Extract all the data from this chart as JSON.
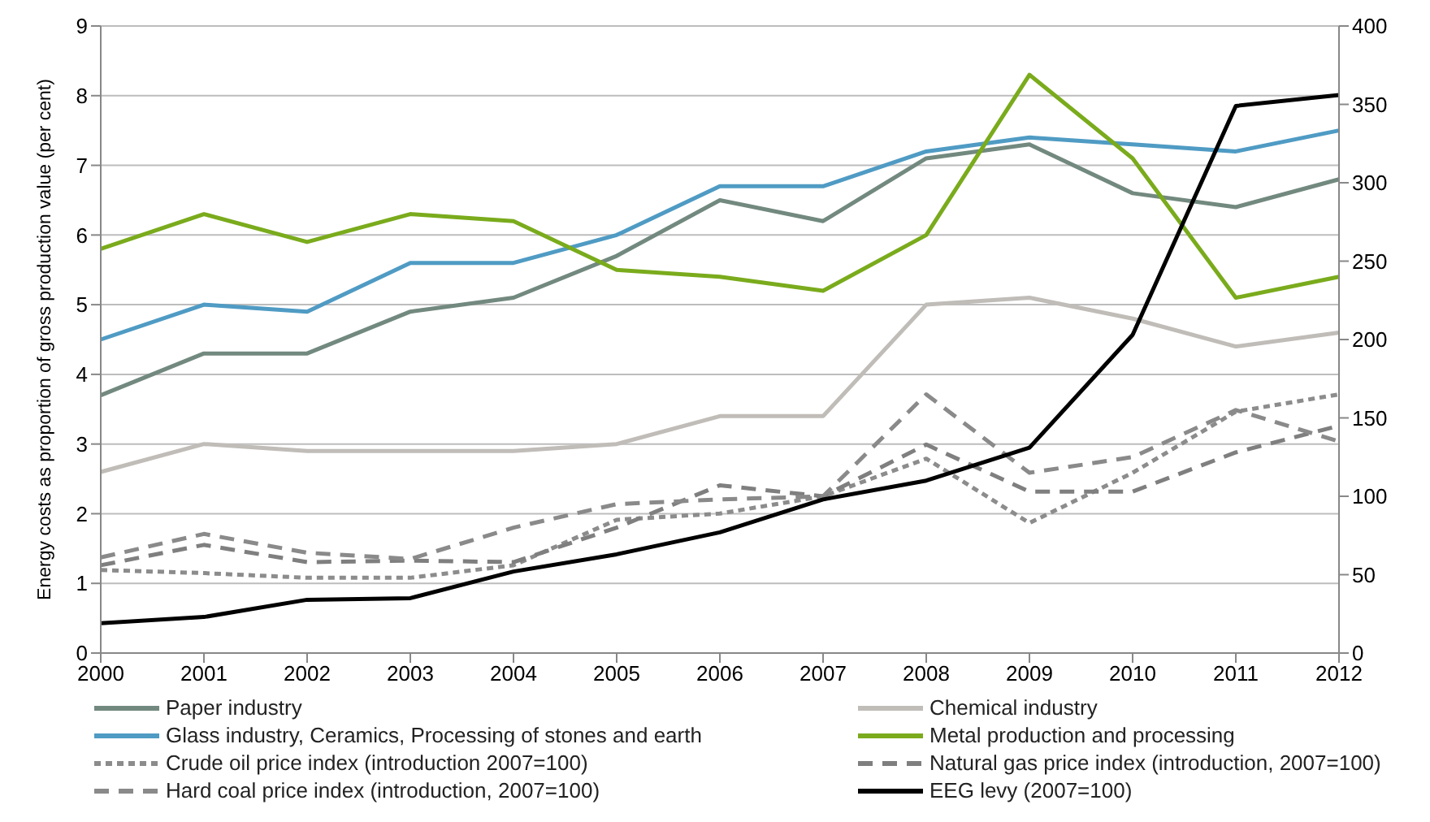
{
  "chart_data": {
    "type": "line",
    "ylabel": "Energy costs as proportion of gross production value (per cent)",
    "categories": [
      "2000",
      "2001",
      "2002",
      "2003",
      "2004",
      "2005",
      "2006",
      "2007",
      "2008",
      "2009",
      "2010",
      "2011",
      "2012"
    ],
    "ylim": [
      0,
      9
    ],
    "yticks": [
      0,
      1,
      2,
      3,
      4,
      5,
      6,
      7,
      8,
      9
    ],
    "y2lim": [
      0,
      400
    ],
    "y2ticks": [
      0,
      50,
      100,
      150,
      200,
      250,
      300,
      350,
      400
    ],
    "grid": "y",
    "legend": "bottom",
    "marker": "none",
    "series": [
      {
        "name": "Paper industry",
        "color": "#72897f",
        "line_style": "solid",
        "values": [
          3.7,
          4.3,
          4.3,
          4.9,
          5.1,
          5.7,
          6.5,
          6.2,
          7.1,
          7.3,
          6.6,
          6.4,
          6.8
        ]
      },
      {
        "name": "Chemical industry",
        "color": "#c0bcb8",
        "line_style": "solid",
        "values": [
          2.6,
          3.0,
          2.9,
          2.9,
          2.9,
          3.0,
          3.4,
          3.4,
          5.0,
          5.1,
          4.8,
          4.4,
          4.6
        ]
      },
      {
        "name": "Glass industry, Ceramics, Processing of stones and earth",
        "color": "#4f9bc4",
        "line_style": "solid",
        "values": [
          4.5,
          5.0,
          4.9,
          5.6,
          5.6,
          6.0,
          6.7,
          6.7,
          7.2,
          7.4,
          7.3,
          7.2,
          7.5
        ]
      },
      {
        "name": "Metal production and processing",
        "color": "#7aab1c",
        "line_style": "solid",
        "values": [
          5.8,
          6.3,
          5.9,
          6.3,
          6.2,
          5.5,
          5.4,
          5.2,
          6.0,
          8.3,
          7.1,
          5.1,
          5.4
        ]
      },
      {
        "name": "Crude oil price index (introduction 2007=100)",
        "color": "#8c8c8c",
        "line_style": "dotted",
        "axis": "y2",
        "values": [
          53,
          51,
          48,
          48,
          56,
          85,
          89,
          100,
          124,
          83,
          115,
          154,
          165
        ]
      },
      {
        "name": "Natural gas price index (introduction, 2007=100)",
        "color": "#7f7f7f",
        "line_style": "dashed",
        "axis": "y2",
        "values": [
          56,
          69,
          58,
          59,
          58,
          80,
          107,
          100,
          133,
          103,
          103,
          128,
          145
        ]
      },
      {
        "name": "Hard coal price index (introduction, 2007=100)",
        "color": "#8a8a8a",
        "line_style": "dashed",
        "axis": "y2",
        "values": [
          61,
          76,
          64,
          60,
          80,
          95,
          98,
          100,
          165,
          115,
          125,
          155,
          135
        ]
      },
      {
        "name": "EEG levy (2007=100)",
        "color": "#000000",
        "line_style": "solid",
        "axis": "y2",
        "values": [
          19,
          23,
          34,
          35,
          52,
          63,
          77,
          98,
          110,
          131,
          203,
          349,
          356
        ]
      }
    ]
  }
}
